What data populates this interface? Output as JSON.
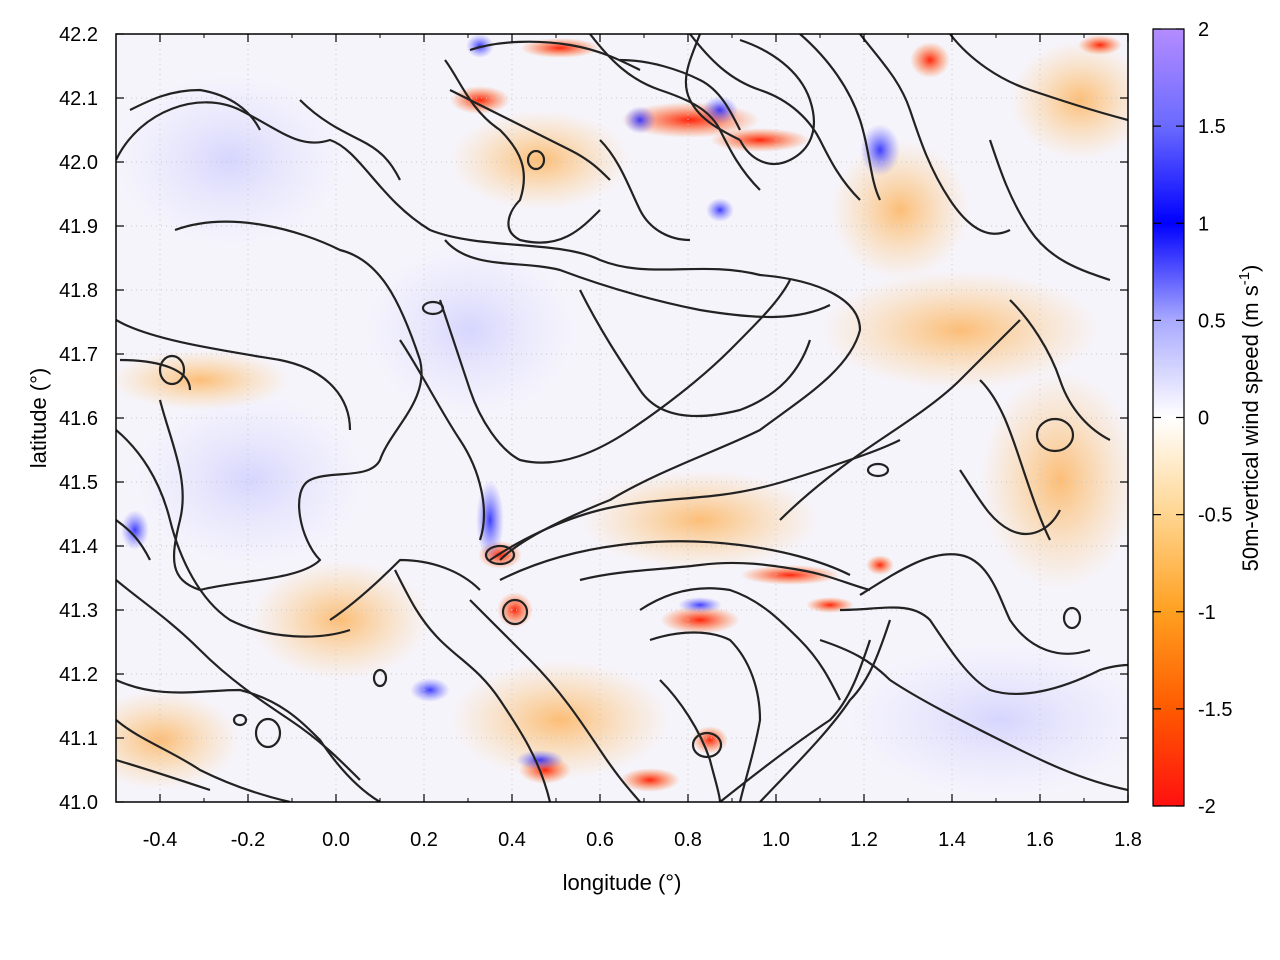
{
  "chart_data": {
    "type": "heatmap",
    "title": "",
    "xlabel": "longitude (°)",
    "ylabel": "latitude (°)",
    "xlim": [
      -0.5,
      1.8
    ],
    "ylim": [
      41.0,
      42.2
    ],
    "x_ticks": [
      "-0.4",
      "-0.2",
      "0.0",
      "0.2",
      "0.4",
      "0.6",
      "0.8",
      "1.0",
      "1.2",
      "1.4",
      "1.6",
      "1.8"
    ],
    "y_ticks": [
      "41.0",
      "41.1",
      "41.2",
      "41.3",
      "41.4",
      "41.5",
      "41.6",
      "41.7",
      "41.8",
      "41.9",
      "42.0",
      "42.1",
      "42.2"
    ],
    "grid": true,
    "colorbar": {
      "label_main": "50m-vertical wind speed (m s",
      "label_sup": "-1",
      "label_close": ")",
      "range": [
        -2,
        2
      ],
      "ticks": [
        "2",
        "1.5",
        "1",
        "0.5",
        "0",
        "-0.5",
        "-1",
        "-1.5",
        "-2"
      ],
      "colors": [
        "#e81818",
        "#ff7a00",
        "#ffc15a",
        "#ffffff",
        "#8080ff",
        "#0000ff",
        "#b08cff"
      ]
    },
    "overlay": "terrain elevation contours (black lines)"
  }
}
